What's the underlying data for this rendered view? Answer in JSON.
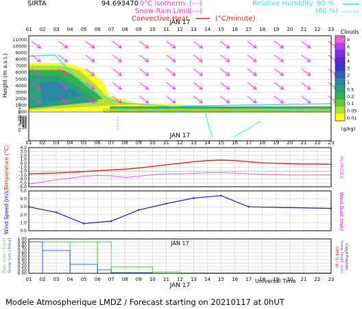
{
  "header": {
    "station": "SIRTA",
    "coords": "94.693470",
    "legend_0c": "0°C isotherm",
    "legend_snow": "Snow-Rain Limit",
    "legend_conv": "Convective Heat.",
    "conv_unit": "(°C/minute)",
    "legend_rh": "Relative Humidity",
    "rh_90": "90 %",
    "rh_60": "(60 %)",
    "dash_sample": "(---)"
  },
  "time": {
    "hours": [
      "01",
      "02",
      "03",
      "04",
      "05",
      "06",
      "07",
      "08",
      "09",
      "10",
      "11",
      "12",
      "13",
      "14",
      "15",
      "16",
      "17",
      "18",
      "19",
      "20",
      "21",
      "22",
      "23"
    ],
    "date": "JAN 17",
    "xaxis_label": "Universal Time"
  },
  "colors": {
    "frame": "#000000",
    "grid": "#9a9a9a",
    "temperature": "#e02020",
    "humidex": "#e060e0",
    "wind": "#1010c0",
    "gust": "#c000c0",
    "arrow": "#ff33e8",
    "cyan": "#33e0f0",
    "rain": "#5bd35b",
    "snow": "#3b6bd8"
  },
  "chart_data": [
    {
      "type": "heatmap",
      "name": "clouds",
      "ylabel": "Height (m a.s.l.)",
      "yticks": [
        "11000",
        "10000",
        "9000",
        "8000",
        "7000",
        "6000",
        "5000",
        "4000",
        "3000",
        "2000",
        "1000",
        "500",
        "400",
        "300",
        "200",
        "140",
        "120",
        "100",
        "80",
        "60",
        "40",
        "20"
      ],
      "scale_title": "Clouds",
      "scale_unit": "(g/kg)",
      "scale_labels": [
        "9",
        "6",
        "5",
        "4",
        "3",
        "2",
        "1",
        "0.5",
        "0.2",
        "0.1",
        "0.05",
        "0.01"
      ],
      "scale_colors": [
        "#f060d8",
        "#b040f0",
        "#8030e0",
        "#5a2ad0",
        "#3a3ac8",
        "#2e62b8",
        "#2a88a0",
        "#2aa07a",
        "#33b050",
        "#66c63a",
        "#b8dc30",
        "#ffff20"
      ],
      "description_layers": [
        {
          "color": "#ffff20",
          "extent": "01-12",
          "top_m": 8300
        },
        {
          "color": "#b8dc30",
          "extent": "01-10",
          "top_m": 7800
        },
        {
          "color": "#33b050",
          "extent": "01-09",
          "top_m": 6700
        },
        {
          "color": "#2aa07a",
          "extent": "01-07",
          "top_m": 5800
        },
        {
          "color": "#2a88a0",
          "extent": "02-05",
          "top_m": 4500
        }
      ],
      "low_layer": {
        "from": "07",
        "to": "23",
        "height_m": "1000-2000"
      },
      "wind_arrows": "toward south-east at all levels",
      "ylim": [
        20,
        11000
      ]
    },
    {
      "type": "line",
      "name": "temperature",
      "ylabel": "Temperature (°C)",
      "ylabel_right": "HUMIDEX",
      "yticks": [
        "4.0",
        "3.0",
        "2.0",
        "1.0",
        "0.0",
        "-1.0",
        "-2.0",
        "-3.0",
        "-4.0",
        "-5.0",
        "-6.0"
      ],
      "ylim": [
        -6,
        4
      ],
      "x": [
        "01",
        "02",
        "03",
        "04",
        "05",
        "06",
        "07",
        "08",
        "09",
        "10",
        "11",
        "12",
        "13",
        "14",
        "15",
        "16",
        "17",
        "18",
        "19",
        "20",
        "21",
        "22",
        "23"
      ],
      "series": [
        {
          "name": "Temperature",
          "values": [
            -2.7,
            -2.6,
            -2.5,
            -2.3,
            -2.1,
            -1.9,
            -1.7,
            -1.5,
            -1.2,
            -0.8,
            -0.4,
            0.0,
            0.4,
            0.7,
            0.8,
            0.7,
            0.4,
            0.1,
            0.0,
            -0.1,
            -0.2,
            -0.2,
            -0.3
          ]
        },
        {
          "name": "Humidex",
          "values": [
            -5.3,
            -4.8,
            -4.2,
            -3.8,
            -3.3,
            -3.1,
            -3.2,
            -3.6,
            -3.3,
            -2.9,
            -2.7,
            -2.7,
            -2.6,
            -2.4,
            -2.4,
            -2.5,
            -2.7,
            -2.8,
            -2.9,
            -3.0,
            -3.0,
            -3.0,
            -3.0
          ]
        }
      ]
    },
    {
      "type": "line",
      "name": "wind",
      "ylabel": "Wind Speed (m/s)",
      "ylabel_right": "Wind Gust (m/s)",
      "yticks": [
        "5.0",
        "4.0",
        "3.0",
        "2.0",
        "1.0",
        "0.0"
      ],
      "ylim": [
        0,
        5
      ],
      "x": [
        "01",
        "03",
        "05",
        "07",
        "09",
        "11",
        "13",
        "15",
        "17",
        "23"
      ],
      "series": [
        {
          "name": "Wind Speed",
          "values": [
            3.0,
            2.3,
            0.9,
            1.2,
            2.6,
            3.4,
            4.1,
            4.4,
            3.0,
            2.8
          ]
        }
      ]
    },
    {
      "type": "bar",
      "name": "precipitation",
      "ylabel": "Rain (mm/hour) Snow (cm/hour)",
      "ylabel_right": "CAPE (J/g) Snow Depth (cm) Cloud Fraction",
      "yticks": [
        "1.00",
        "0.90",
        "0.80",
        "0.70",
        "0.60",
        "0.50",
        "0.40",
        "0.30",
        "0.20",
        "0.10",
        "0.00"
      ],
      "ylim": [
        0,
        1
      ],
      "x_ranges": [
        [
          "01",
          "02"
        ],
        [
          "02",
          "04"
        ],
        [
          "04",
          "06"
        ],
        [
          "06",
          "07"
        ],
        [
          "07",
          "10"
        ],
        [
          "10",
          "12"
        ],
        [
          "12",
          "23"
        ]
      ],
      "series": [
        {
          "name": "Rain",
          "values": [
            0.92,
            0.92,
            0.92,
            0.92,
            0.18,
            0.04,
            0.01
          ]
        },
        {
          "name": "Snow",
          "values": [
            0.92,
            0.66,
            0.26,
            0.1,
            0.02,
            0.0,
            0.0
          ]
        }
      ]
    }
  ],
  "footer": {
    "title": "Modele Atmospherique LMDZ / Forecast starting on 20210117 at 0hUT"
  }
}
